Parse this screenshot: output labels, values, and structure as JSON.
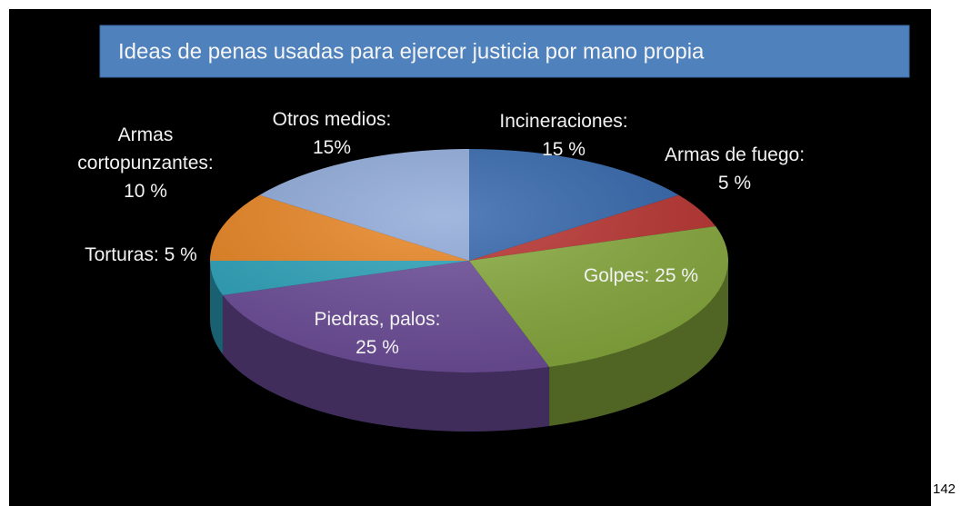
{
  "chart_data": {
    "type": "pie",
    "title": "Ideas de penas usadas para ejercer justicia por mano propia",
    "categories": [
      "Incineraciones:",
      "Armas de fuego:",
      "Golpes:",
      "Piedras, palos:",
      "Torturas:",
      "Armas cortopunzantes:",
      "Otros  medios:"
    ],
    "values": [
      15,
      5,
      25,
      25,
      5,
      10,
      15
    ],
    "value_labels": [
      "15 %",
      "5 %",
      "25 %",
      "25 %",
      "5 %",
      "10 %",
      "15%"
    ],
    "colors": [
      "#2f63aa",
      "#b8302d",
      "#86a93b",
      "#6b4b98",
      "#2aa2ba",
      "#e8831f",
      "#8da8d8"
    ]
  },
  "page_number": "142"
}
